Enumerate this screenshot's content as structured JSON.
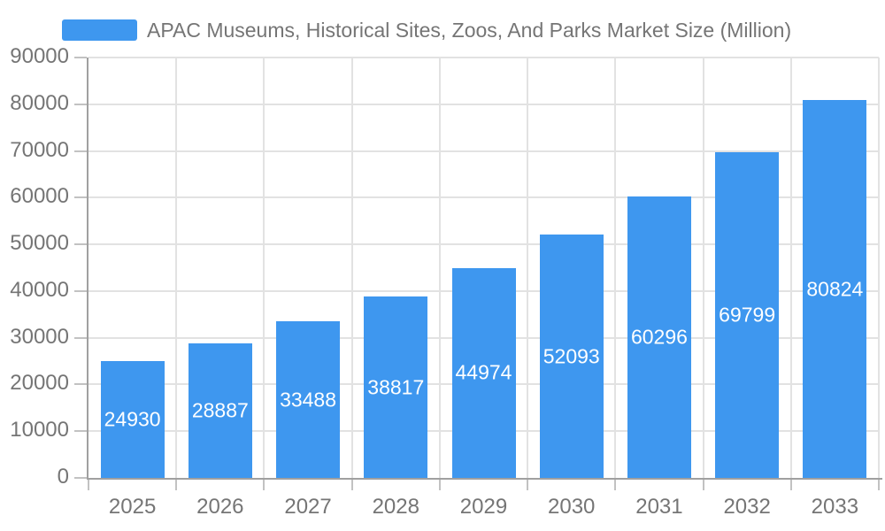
{
  "chart_data": {
    "type": "bar",
    "title": "APAC Museums, Historical Sites, Zoos, And Parks Market Size (Million)",
    "legend": {
      "position": "top",
      "entries": [
        "APAC Museums, Historical Sites, Zoos, And Parks Market Size (Million)"
      ]
    },
    "categories": [
      "2025",
      "2026",
      "2027",
      "2028",
      "2029",
      "2030",
      "2031",
      "2032",
      "2033"
    ],
    "series": [
      {
        "name": "APAC Museums, Historical Sites, Zoos, And Parks Market Size (Million)",
        "values": [
          24930,
          28887,
          33488,
          38817,
          44974,
          52093,
          60296,
          69799,
          80824
        ]
      }
    ],
    "value_labels": [
      "24930",
      "28887",
      "33488",
      "38817",
      "44974",
      "52093",
      "60296",
      "69799",
      "80824"
    ],
    "xlabel": "",
    "ylabel": "",
    "ylim": [
      0,
      90000
    ],
    "ytick_step": 10000,
    "yticks": [
      0,
      10000,
      20000,
      30000,
      40000,
      50000,
      60000,
      70000,
      80000,
      90000
    ],
    "grid": true,
    "colors": {
      "bar": "#3E97EF",
      "value_label": "#ffffff",
      "axis_text": "#757575",
      "legend_text": "#757575",
      "gridline": "#e2e2e2",
      "tick": "#c2c2c2",
      "axis_line": "#a0a0a0",
      "background": "#ffffff"
    }
  }
}
